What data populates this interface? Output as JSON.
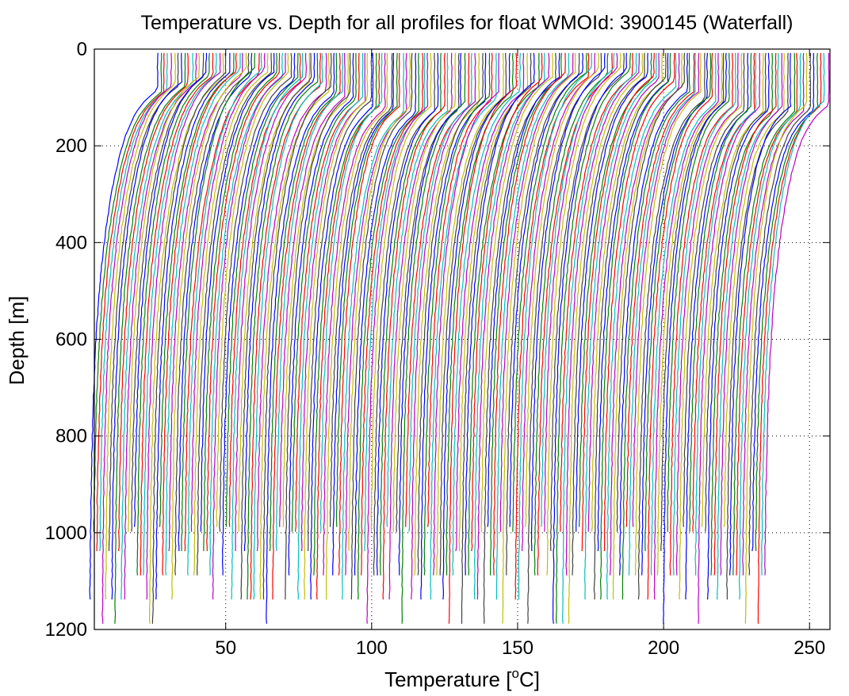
{
  "chart_data": {
    "type": "line",
    "title": "Temperature vs. Depth for all profiles for float WMOId: 3900145 (Waterfall)",
    "xlabel_main": "Temperature [",
    "xlabel_sup": "o",
    "xlabel_tail": "C]",
    "ylabel": "Depth [m]",
    "xlim": [
      5,
      257
    ],
    "ylim": [
      0,
      1200
    ],
    "y_inverted": true,
    "grid": true,
    "grid_style": "dotted",
    "xticks": [
      50,
      100,
      150,
      200,
      250
    ],
    "xtick_labels": [
      "50",
      "100",
      "150",
      "200",
      "250"
    ],
    "yticks": [
      0,
      200,
      400,
      600,
      800,
      1000,
      1200
    ],
    "ytick_labels": [
      "0",
      "200",
      "400",
      "600",
      "800",
      "1000",
      "1200"
    ],
    "colors": [
      "#0000ff",
      "#008000",
      "#ff0000",
      "#00bfbf",
      "#bf00bf",
      "#bfbf00",
      "#404040"
    ],
    "waterfall": {
      "profile_count": 215,
      "offset_start": 0.0,
      "offset_step": 1.08,
      "deep_temperature": 3.2,
      "surface_temperature_min": 24.0,
      "surface_temperature_max": 28.5,
      "thermocline_depth_min": 40,
      "thermocline_depth_max": 120,
      "max_depth_values": [
        1090,
        1140,
        1040,
        990,
        1090,
        1140,
        1190,
        1000
      ]
    }
  }
}
